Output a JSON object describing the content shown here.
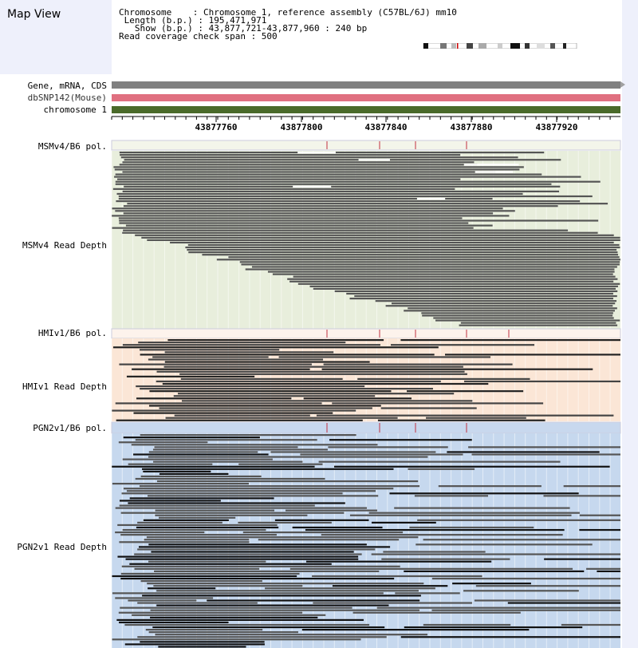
{
  "app": {
    "title": "Map View"
  },
  "info": {
    "chromosome": "Chromosome    : Chromosome 1, reference assembly (C57BL/6J) mm10",
    "length": " Length (b.p.) : 195,471,971",
    "show": "   Show (b.p.) : 43,877,721-43,877,960 : 240 bp",
    "coverage": "Read coverage check span : 500"
  },
  "tracks": {
    "gene": "Gene, mRNA, CDS",
    "dbsnp": "dbSNP142(Mouse)",
    "chromosome": "chromosome 1",
    "msm_pol": "MSMv4/B6 pol.",
    "msm_depth": "MSMv4 Read Depth",
    "hmi_pol": "HMIv1/B6 pol.",
    "hmi_depth": "HMIv1 Read Depth",
    "pgn_pol": "PGN2v1/B6 pol.",
    "pgn_depth": "PGN2v1 Read Depth"
  },
  "ruler": {
    "ticks": [
      "43877760",
      "43877800",
      "43877840",
      "43877880",
      "43877920"
    ]
  },
  "colors": {
    "gene": "#808080",
    "dbsnp": "#e07080",
    "chromosome": "#4a6a2a",
    "msm_bg": "#e8eedc",
    "hmi_bg": "#fbe6d6",
    "pgn_bg": "#c6d8ee",
    "sidebar_bg": "#eef0fb",
    "snp_tick": "#c03040"
  }
}
